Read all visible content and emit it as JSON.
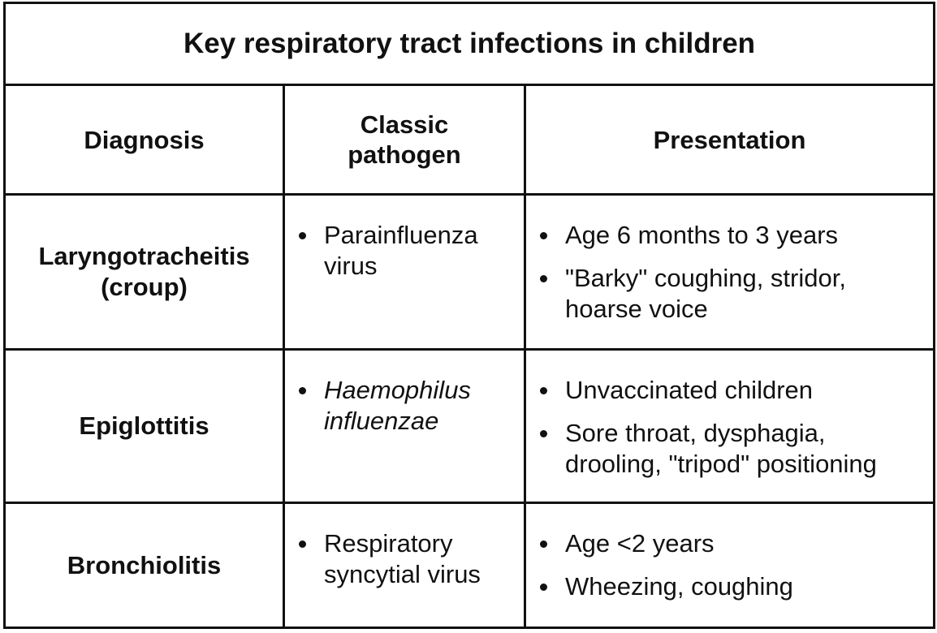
{
  "table": {
    "title": "Key respiratory tract infections in children",
    "headers": {
      "diagnosis": "Diagnosis",
      "pathogen_line1": "Classic",
      "pathogen_line2": "pathogen",
      "presentation": "Presentation"
    },
    "rows": [
      {
        "diagnosis_line1": "Laryngotracheitis",
        "diagnosis_line2": "(croup)",
        "pathogen": [
          "Parainfluenza virus"
        ],
        "presentation": [
          "Age 6 months to 3 years",
          "\"Barky\" coughing, stridor, hoarse voice"
        ]
      },
      {
        "diagnosis_line1": "Epiglottitis",
        "pathogen": [
          "Haemophilus influenzae"
        ],
        "presentation": [
          "Unvaccinated children",
          "Sore throat, dysphagia, drooling, \"tripod\" positioning"
        ]
      },
      {
        "diagnosis_line1": "Bronchiolitis",
        "pathogen": [
          "Respiratory syncytial virus"
        ],
        "presentation": [
          "Age <2 years",
          "Wheezing, coughing"
        ]
      }
    ]
  }
}
